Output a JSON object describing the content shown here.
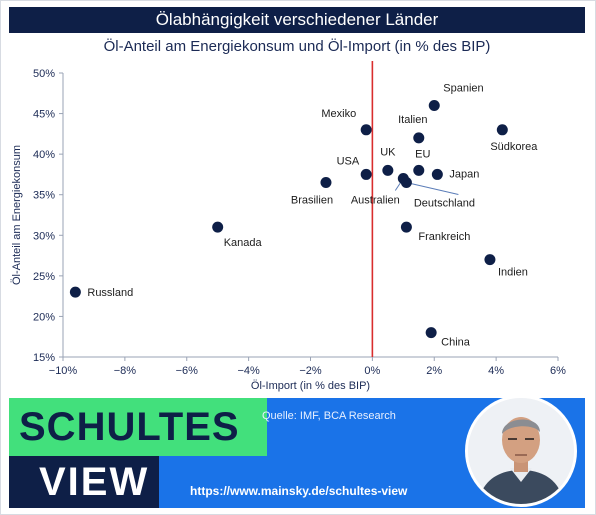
{
  "title": "Ölabhängigkeit verschiedener Länder",
  "subtitle": "Öl-Anteil am Energiekonsum und Öl-Import (in % des BIP)",
  "chart_data": {
    "type": "scatter",
    "xlabel": "Öl-Import (in % des BIP)",
    "ylabel": "Öl-Anteil am Energiekonsum",
    "xlim": [
      -10,
      6
    ],
    "ylim": [
      15,
      50
    ],
    "x_ticks": [
      "−10%",
      "−8%",
      "−6%",
      "−4%",
      "−2%",
      "0%",
      "2%",
      "4%",
      "6%"
    ],
    "y_ticks": [
      "15%",
      "20%",
      "25%",
      "30%",
      "35%",
      "40%",
      "45%",
      "50%"
    ],
    "grid": false,
    "zero_line_color": "#d92d2d",
    "point_color": "#0e1f47",
    "points": [
      {
        "label": "Russland",
        "x": -9.6,
        "y": 23.0
      },
      {
        "label": "Kanada",
        "x": -5.0,
        "y": 31.0
      },
      {
        "label": "Brasilien",
        "x": -1.5,
        "y": 36.5
      },
      {
        "label": "Mexiko",
        "x": -0.2,
        "y": 43.0
      },
      {
        "label": "USA",
        "x": -0.2,
        "y": 37.5
      },
      {
        "label": "UK",
        "x": 0.5,
        "y": 38.0
      },
      {
        "label": "Australien",
        "x": 1.0,
        "y": 37.0
      },
      {
        "label": "Deutschland",
        "x": 1.1,
        "y": 36.5
      },
      {
        "label": "EU",
        "x": 1.5,
        "y": 38.0
      },
      {
        "label": "Italien",
        "x": 1.5,
        "y": 42.0
      },
      {
        "label": "Spanien",
        "x": 2.0,
        "y": 46.0
      },
      {
        "label": "Japan",
        "x": 2.1,
        "y": 37.5
      },
      {
        "label": "Frankreich",
        "x": 1.1,
        "y": 31.0
      },
      {
        "label": "China",
        "x": 1.9,
        "y": 18.0
      },
      {
        "label": "Indien",
        "x": 3.8,
        "y": 27.0
      },
      {
        "label": "Südkorea",
        "x": 4.2,
        "y": 43.0
      }
    ]
  },
  "footer": {
    "brand_top": "SCHULTES",
    "brand_bottom": "VIEW",
    "source": "Quelle: IMF, BCA Research",
    "url": "https://www.mainsky.de/schultes-view"
  }
}
